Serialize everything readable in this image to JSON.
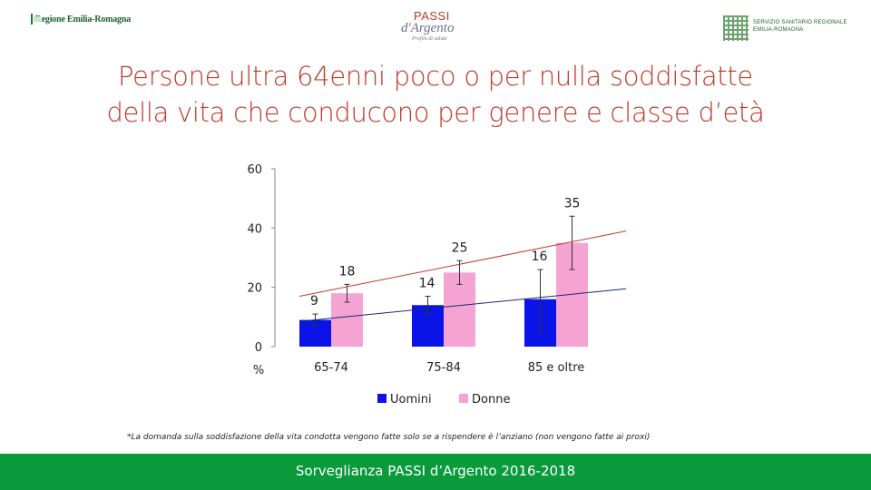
{
  "header": {
    "left_logo_text": "Regione Emilia-Romagna",
    "center_logo": {
      "passi": "PASSI",
      "argento": "d'Argento",
      "tagline": "Profilo di salute"
    },
    "right_logo_lines": [
      "SERVIZIO SANITARIO REGIONALE",
      "EMILIA-ROMAGNA"
    ]
  },
  "title_lines": [
    "Persone ultra 64enni poco o per nulla soddisfatte",
    "della vita che conducono per genere e classe d’età"
  ],
  "colors": {
    "uomini": "#0a14e6",
    "donne": "#f5a3d3",
    "title": "#c0392b",
    "footer": "#0a9a3c",
    "trend_uomini": "#1a2a6c",
    "trend_donne": "#c0392b"
  },
  "chart_data": {
    "type": "bar",
    "categories": [
      "65-74",
      "75-84",
      "85 e oltre"
    ],
    "series": [
      {
        "name": "Uomini",
        "values": [
          9,
          14,
          16
        ],
        "ci": [
          [
            7,
            11
          ],
          [
            11,
            17
          ],
          [
            5,
            26
          ]
        ],
        "labels": [
          "9",
          "14",
          "16"
        ]
      },
      {
        "name": "Donne",
        "values": [
          18,
          25,
          35
        ],
        "ci": [
          [
            15,
            21
          ],
          [
            21,
            29
          ],
          [
            26,
            44
          ]
        ],
        "labels": [
          "18",
          "25",
          "35"
        ]
      }
    ],
    "trendlines": {
      "Uomini": {
        "start": 8.5,
        "end": 19.5
      },
      "Donne": {
        "start": 17,
        "end": 39
      }
    },
    "ylim": [
      0,
      60
    ],
    "yticks": [
      "0",
      "20",
      "40",
      "60"
    ],
    "ylabel": "%",
    "legend": "bottom"
  },
  "footnote": "*La domanda sulla soddisfazione della vita condotta vengono fatte solo se a rispendere è l’anziano (non vengono fatte ai proxi)",
  "footer": "Sorveglianza PASSI d’Argento 2016-2018"
}
